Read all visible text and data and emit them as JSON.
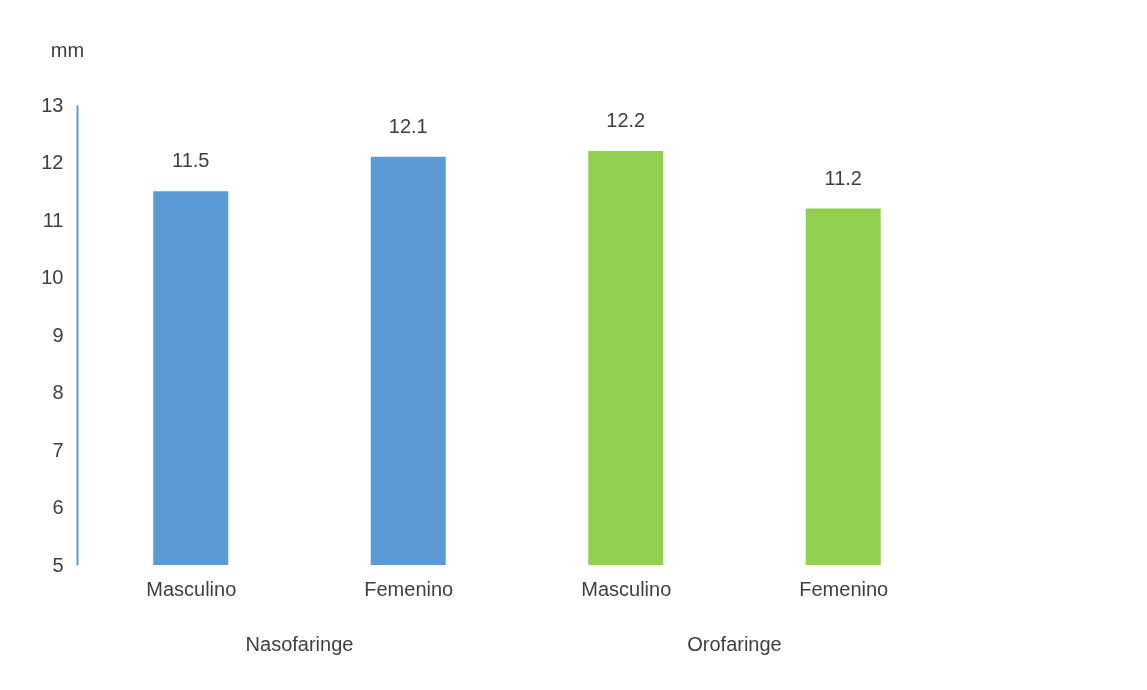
{
  "chart_data": {
    "type": "bar",
    "ylabel": "mm",
    "categories": [
      "Masculino",
      "Femenino",
      "Masculino",
      "Femenino"
    ],
    "values": [
      11.5,
      12.1,
      12.2,
      11.2
    ],
    "colors": [
      "#5b9bd5",
      "#5b9bd5",
      "#92d050",
      "#92d050"
    ],
    "ylim": [
      5,
      13
    ],
    "yticks": [
      5,
      6,
      7,
      8,
      9,
      10,
      11,
      12,
      13
    ],
    "data_labels": true,
    "grid": false,
    "annotations": [
      "Nasofaringe",
      "Orofaringe"
    ]
  }
}
